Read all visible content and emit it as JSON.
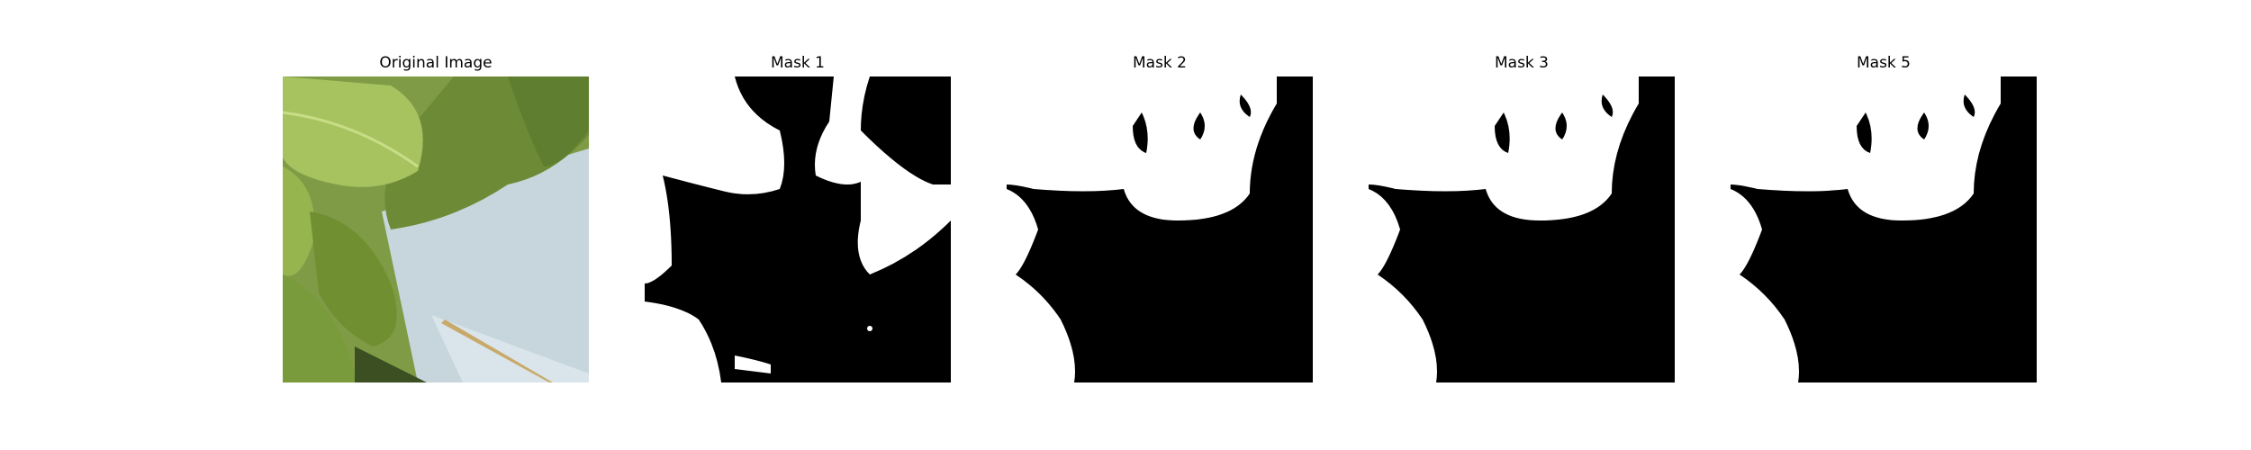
{
  "panels": [
    {
      "title": "Original Image",
      "kind": "photo"
    },
    {
      "title": "Mask 1",
      "kind": "mask"
    },
    {
      "title": "Mask 2",
      "kind": "mask"
    },
    {
      "title": "Mask 3",
      "kind": "mask"
    },
    {
      "title": "Mask 5",
      "kind": "mask"
    }
  ],
  "colors": {
    "background": "#ffffff",
    "mask_foreground": "#ffffff",
    "mask_background": "#000000",
    "leaf_green": "#7a9a3a",
    "white_surface": "#c9d8df"
  }
}
